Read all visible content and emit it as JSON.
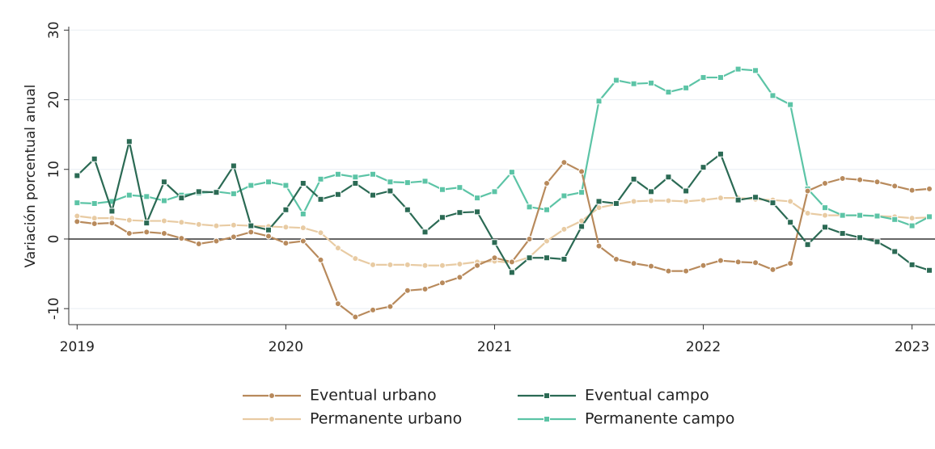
{
  "chart_data": {
    "type": "line",
    "y_label": "Variación porcentual anual",
    "x": [
      2019,
      2019.083,
      2019.167,
      2019.25,
      2019.333,
      2019.417,
      2019.5,
      2019.583,
      2019.667,
      2019.75,
      2019.833,
      2019.917,
      2020,
      2020.083,
      2020.167,
      2020.25,
      2020.333,
      2020.417,
      2020.5,
      2020.583,
      2020.667,
      2020.75,
      2020.833,
      2020.917,
      2021,
      2021.083,
      2021.167,
      2021.25,
      2021.333,
      2021.417,
      2021.5,
      2021.583,
      2021.667,
      2021.75,
      2021.833,
      2021.917,
      2022,
      2022.083,
      2022.167,
      2022.25,
      2022.333,
      2022.417,
      2022.5,
      2022.583,
      2022.667,
      2022.75,
      2022.833,
      2022.917,
      2023,
      2023.083
    ],
    "series": [
      {
        "name": "Eventual urbano",
        "color": "#b88a5c",
        "marker": "circle",
        "values": [
          2.5,
          2.2,
          2.3,
          0.8,
          1.0,
          0.8,
          0.1,
          -0.7,
          -0.3,
          0.3,
          1.0,
          0.4,
          -0.6,
          -0.3,
          -3.0,
          -9.3,
          -11.2,
          -10.2,
          -9.7,
          -7.4,
          -7.2,
          -6.3,
          -5.5,
          -3.8,
          -2.7,
          -3.3,
          0.0,
          8.0,
          11.0,
          9.7,
          -1.0,
          -2.9,
          -3.5,
          -3.9,
          -4.6,
          -4.6,
          -3.8,
          -3.1,
          -3.3,
          -3.4,
          -4.4,
          -3.5,
          6.9,
          8.0,
          8.7,
          8.5,
          8.2,
          7.6,
          7.0,
          7.2
        ]
      },
      {
        "name": "Eventual campo",
        "color": "#2b6a54",
        "marker": "square",
        "values": [
          9.1,
          11.5,
          4.0,
          14.0,
          2.3,
          8.2,
          5.9,
          6.8,
          6.7,
          10.5,
          1.9,
          1.3,
          4.2,
          8.0,
          5.7,
          6.4,
          8.0,
          6.3,
          6.9,
          4.2,
          1.0,
          3.1,
          3.8,
          3.9,
          -0.5,
          -4.8,
          -2.7,
          -2.7,
          -2.9,
          1.8,
          5.4,
          5.1,
          8.6,
          6.8,
          8.9,
          6.9,
          10.3,
          12.2,
          5.6,
          6.0,
          5.2,
          2.4,
          -0.8,
          1.7,
          0.8,
          0.2,
          -0.4,
          -1.8,
          -3.7,
          -4.5
        ]
      },
      {
        "name": "Permanente urbano",
        "color": "#e8cba3",
        "marker": "circle",
        "values": [
          3.3,
          3.0,
          3.0,
          2.7,
          2.6,
          2.6,
          2.4,
          2.1,
          1.9,
          2.0,
          1.9,
          1.8,
          1.7,
          1.6,
          0.9,
          -1.3,
          -2.8,
          -3.7,
          -3.7,
          -3.7,
          -3.8,
          -3.8,
          -3.6,
          -3.3,
          -3.2,
          -3.4,
          -2.6,
          -0.3,
          1.4,
          2.6,
          4.5,
          5.0,
          5.4,
          5.5,
          5.5,
          5.4,
          5.6,
          5.9,
          5.9,
          5.7,
          5.6,
          5.4,
          3.7,
          3.4,
          3.4,
          3.4,
          3.3,
          3.2,
          3.0,
          3.1
        ]
      },
      {
        "name": "Permanente campo",
        "color": "#5cc4a6",
        "marker": "square",
        "values": [
          5.2,
          5.1,
          5.4,
          6.3,
          6.1,
          5.5,
          6.3,
          6.6,
          6.8,
          6.5,
          7.7,
          8.2,
          7.7,
          3.6,
          8.6,
          9.3,
          8.9,
          9.3,
          8.2,
          8.1,
          8.3,
          7.1,
          7.4,
          5.9,
          6.8,
          9.6,
          4.6,
          4.2,
          6.2,
          6.7,
          19.8,
          22.8,
          22.3,
          22.4,
          21.1,
          21.7,
          23.2,
          23.2,
          24.4,
          24.2,
          20.6,
          19.3,
          7.2,
          4.5,
          3.4,
          3.4,
          3.3,
          2.8,
          1.9,
          3.2
        ]
      }
    ],
    "xlim": [
      2018.96,
      2023.11
    ],
    "xticks": [
      2019,
      2020,
      2021,
      2022,
      2023
    ],
    "ylim": [
      -12.3,
      30.5
    ],
    "yticks": [
      -10,
      0,
      10,
      20,
      30
    ],
    "grid": true,
    "legend": "bottom"
  }
}
